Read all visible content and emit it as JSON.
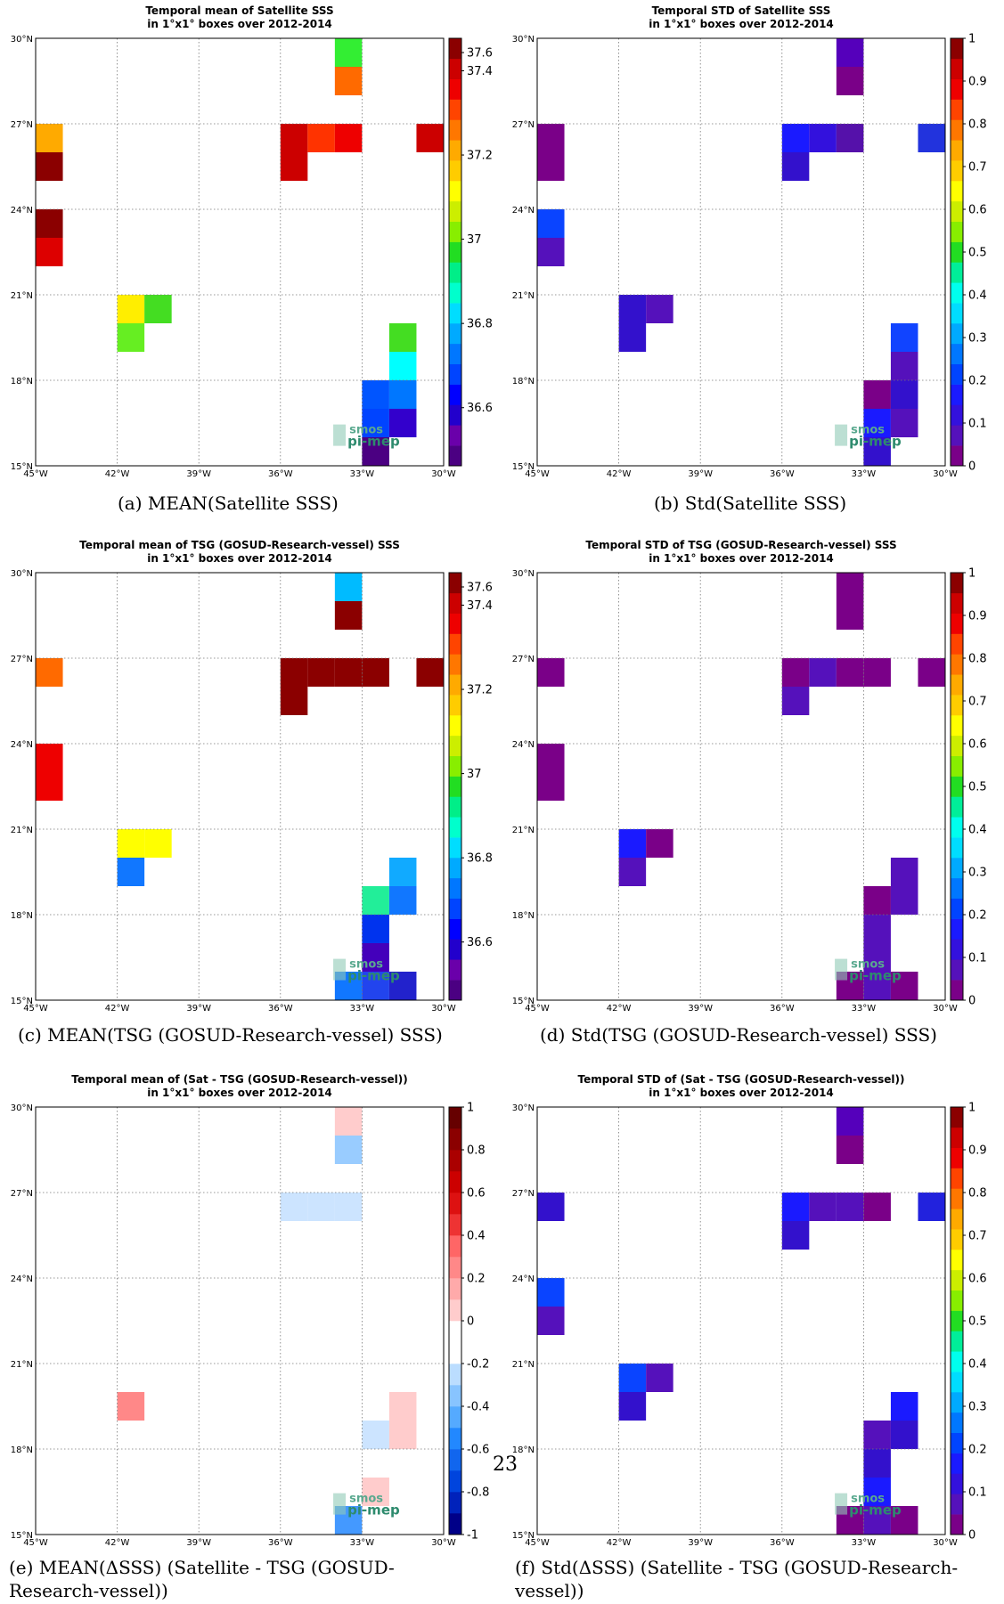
{
  "page_number": "23",
  "x_ticks": [
    "45°W",
    "42°W",
    "39°W",
    "36°W",
    "33°W",
    "30°W"
  ],
  "y_ticks": [
    "15°N",
    "18°N",
    "21°N",
    "24°N",
    "27°N",
    "30°N"
  ],
  "watermark": {
    "line1": "smos",
    "line2": "pi-mep"
  },
  "panels": [
    {
      "title1": "Temporal mean of Satellite SSS",
      "title2": "in 1°x1° boxes over 2012-2014",
      "caption": "(a) MEAN(Satellite SSS)",
      "caption2": "",
      "cbar": "sss",
      "cells": [
        [
          34,
          29,
          "#33ee33"
        ],
        [
          34,
          28,
          "#ff6a00"
        ],
        [
          45,
          26,
          "#ffaa00"
        ],
        [
          45,
          25,
          "#8b0000"
        ],
        [
          45,
          23,
          "#8b0000"
        ],
        [
          45,
          22,
          "#dd0000"
        ],
        [
          36,
          26,
          "#cc0000"
        ],
        [
          35,
          26,
          "#ff3300"
        ],
        [
          34,
          26,
          "#ee0000"
        ],
        [
          31,
          26,
          "#cc0000"
        ],
        [
          36,
          25,
          "#cc0000"
        ],
        [
          42,
          20,
          "#ffee00"
        ],
        [
          41,
          20,
          "#44dd22"
        ],
        [
          42,
          19,
          "#66ee22"
        ],
        [
          32,
          19,
          "#44dd22"
        ],
        [
          32,
          18,
          "#00ffff"
        ],
        [
          33,
          17,
          "#0055ff"
        ],
        [
          32,
          17,
          "#0077ff"
        ],
        [
          33,
          16,
          "#0044ff"
        ],
        [
          32,
          16,
          "#3300cc"
        ],
        [
          33,
          15,
          "#4b0082"
        ]
      ]
    },
    {
      "title1": "Temporal STD of Satellite SSS",
      "title2": "in 1°x1° boxes over 2012-2014",
      "caption": "(b) Std(Satellite SSS)",
      "caption2": "",
      "cbar": "std",
      "cells": [
        [
          34,
          29,
          "#5500bb"
        ],
        [
          34,
          28,
          "#7a0088"
        ],
        [
          45,
          26,
          "#7a0088"
        ],
        [
          45,
          25,
          "#7a0088"
        ],
        [
          36,
          26,
          "#1a1aff"
        ],
        [
          35,
          26,
          "#3311dd"
        ],
        [
          34,
          26,
          "#5511aa"
        ],
        [
          31,
          26,
          "#2233dd"
        ],
        [
          36,
          25,
          "#3311cc"
        ],
        [
          45,
          23,
          "#0a44ff"
        ],
        [
          45,
          22,
          "#5511bb"
        ],
        [
          42,
          20,
          "#3311cc"
        ],
        [
          41,
          20,
          "#5511bb"
        ],
        [
          42,
          19,
          "#3311cc"
        ],
        [
          32,
          19,
          "#1144ff"
        ],
        [
          32,
          18,
          "#5511bb"
        ],
        [
          33,
          17,
          "#7a0088"
        ],
        [
          32,
          17,
          "#3311cc"
        ],
        [
          33,
          16,
          "#1a1aff"
        ],
        [
          32,
          16,
          "#5511bb"
        ],
        [
          33,
          15,
          "#3311cc"
        ]
      ]
    },
    {
      "title1": "Temporal mean of TSG (GOSUD-Research-vessel) SSS",
      "title2": "in 1°x1° boxes over 2012-2014",
      "caption": "(c) MEAN(TSG (GOSUD-Research-vessel) SSS)",
      "caption2": "",
      "cbar": "sss",
      "cells": [
        [
          34,
          29,
          "#00bbff"
        ],
        [
          34,
          28,
          "#8b0000"
        ],
        [
          45,
          26,
          "#ff6a00"
        ],
        [
          36,
          26,
          "#8b0000"
        ],
        [
          35,
          26,
          "#8b0000"
        ],
        [
          34,
          26,
          "#8b0000"
        ],
        [
          33,
          26,
          "#8b0000"
        ],
        [
          31,
          26,
          "#8b0000"
        ],
        [
          36,
          25,
          "#8b0000"
        ],
        [
          45,
          23,
          "#ee0000"
        ],
        [
          45,
          22,
          "#ee0000"
        ],
        [
          42,
          20,
          "#ffff00"
        ],
        [
          41,
          20,
          "#ffff00"
        ],
        [
          42,
          19,
          "#1177ff"
        ],
        [
          32,
          19,
          "#11aaff"
        ],
        [
          33,
          18,
          "#22ee99"
        ],
        [
          32,
          18,
          "#1177ff"
        ],
        [
          33,
          17,
          "#0033ee"
        ],
        [
          33,
          16,
          "#4400bb"
        ],
        [
          34,
          15,
          "#1177ff"
        ],
        [
          33,
          15,
          "#2244ee"
        ],
        [
          32,
          15,
          "#2222cc"
        ]
      ]
    },
    {
      "title1": "Temporal STD of TSG (GOSUD-Research-vessel) SSS",
      "title2": "in 1°x1° boxes over 2012-2014",
      "caption": "(d) Std(TSG (GOSUD-Research-vessel) SSS)",
      "caption2": "",
      "cbar": "std",
      "cells": [
        [
          34,
          29,
          "#7a0088"
        ],
        [
          34,
          28,
          "#7a0088"
        ],
        [
          45,
          26,
          "#7a0088"
        ],
        [
          36,
          26,
          "#7a0088"
        ],
        [
          35,
          26,
          "#5511bb"
        ],
        [
          34,
          26,
          "#7a0088"
        ],
        [
          33,
          26,
          "#7a0088"
        ],
        [
          31,
          26,
          "#7a0088"
        ],
        [
          36,
          25,
          "#5511bb"
        ],
        [
          45,
          23,
          "#7a0088"
        ],
        [
          45,
          22,
          "#7a0088"
        ],
        [
          42,
          20,
          "#1a1aff"
        ],
        [
          41,
          20,
          "#7a0088"
        ],
        [
          42,
          19,
          "#5511bb"
        ],
        [
          32,
          19,
          "#5511bb"
        ],
        [
          33,
          18,
          "#7a0088"
        ],
        [
          32,
          18,
          "#5511bb"
        ],
        [
          33,
          17,
          "#5511bb"
        ],
        [
          33,
          16,
          "#5511bb"
        ],
        [
          34,
          15,
          "#7a0088"
        ],
        [
          33,
          15,
          "#5511bb"
        ],
        [
          32,
          15,
          "#7a0088"
        ]
      ]
    },
    {
      "title1": "Temporal mean of (Sat - TSG (GOSUD-Research-vessel))",
      "title2": "in 1°x1° boxes over 2012-2014",
      "caption": "(e) MEAN(ΔSSS) (Satellite - TSG (GOSUD-",
      "caption2": "Research-vessel))",
      "cbar": "diff",
      "cells": [
        [
          34,
          29,
          "#ffcccc"
        ],
        [
          34,
          28,
          "#99ccff"
        ],
        [
          36,
          26,
          "#cce4ff"
        ],
        [
          35,
          26,
          "#cce4ff"
        ],
        [
          34,
          26,
          "#cce4ff"
        ],
        [
          42,
          19,
          "#ff8888"
        ],
        [
          32,
          19,
          "#ffcccc"
        ],
        [
          33,
          18,
          "#cce4ff"
        ],
        [
          32,
          18,
          "#ffcccc"
        ],
        [
          33,
          16,
          "#ffcccc"
        ],
        [
          34,
          15,
          "#4499ff"
        ]
      ]
    },
    {
      "title1": "Temporal STD of (Sat - TSG (GOSUD-Research-vessel))",
      "title2": "in 1°x1° boxes over 2012-2014",
      "caption": "(f) Std(ΔSSS) (Satellite - TSG (GOSUD-Research-",
      "caption2": "vessel))",
      "cbar": "std",
      "cells": [
        [
          34,
          29,
          "#5500bb"
        ],
        [
          34,
          28,
          "#7a0088"
        ],
        [
          45,
          26,
          "#3311cc"
        ],
        [
          36,
          26,
          "#1a1aff"
        ],
        [
          35,
          26,
          "#5511bb"
        ],
        [
          34,
          26,
          "#5511bb"
        ],
        [
          33,
          26,
          "#7a0088"
        ],
        [
          31,
          26,
          "#2222dd"
        ],
        [
          36,
          25,
          "#3311cc"
        ],
        [
          45,
          23,
          "#0a44ff"
        ],
        [
          45,
          22,
          "#5511bb"
        ],
        [
          42,
          20,
          "#0a44ff"
        ],
        [
          41,
          20,
          "#5511bb"
        ],
        [
          42,
          19,
          "#3311cc"
        ],
        [
          32,
          19,
          "#1a1aff"
        ],
        [
          33,
          18,
          "#5511bb"
        ],
        [
          32,
          18,
          "#3311cc"
        ],
        [
          33,
          17,
          "#3311cc"
        ],
        [
          33,
          16,
          "#1a1aff"
        ],
        [
          34,
          15,
          "#7a0088"
        ],
        [
          33,
          15,
          "#5511bb"
        ],
        [
          32,
          15,
          "#7a0088"
        ]
      ]
    }
  ],
  "colorbars": {
    "sss": {
      "colors": [
        "#4b0082",
        "#6a00aa",
        "#2200cc",
        "#0000ff",
        "#0044ff",
        "#0077ff",
        "#00aaff",
        "#00ddff",
        "#00ffcc",
        "#00ee88",
        "#22dd22",
        "#88ee00",
        "#ccee00",
        "#ffff00",
        "#ffcc00",
        "#ffaa00",
        "#ff7700",
        "#ff4400",
        "#ee0000",
        "#cc0000",
        "#8b0000"
      ],
      "labels": [
        "36.6",
        "36.8",
        "37",
        "37.2",
        "37.4",
        "37.6"
      ],
      "label_fracs": [
        0.136,
        0.333,
        0.53,
        0.727,
        0.924,
        1.0
      ]
    },
    "std": {
      "colors": [
        "#7a0088",
        "#5511bb",
        "#3311dd",
        "#1a1aff",
        "#0044ff",
        "#0077ff",
        "#00aaff",
        "#00ddff",
        "#00ffee",
        "#00ee99",
        "#22dd22",
        "#88ee00",
        "#ccee00",
        "#ffff00",
        "#ffcc00",
        "#ffaa00",
        "#ff7700",
        "#ff4400",
        "#ee0000",
        "#cc0000",
        "#8b0000"
      ],
      "labels": [
        "0",
        "0.1",
        "0.2",
        "0.3",
        "0.4",
        "0.5",
        "0.6",
        "0.7",
        "0.8",
        "0.9",
        "1"
      ]
    },
    "diff": {
      "colors": [
        "#000088",
        "#0022bb",
        "#0044dd",
        "#1166ee",
        "#2288ff",
        "#55aaff",
        "#88c4ff",
        "#bbddff",
        "#ffffff",
        "#ffffff",
        "#ffcccc",
        "#ffaaaa",
        "#ff8888",
        "#ff6666",
        "#ee3333",
        "#dd1111",
        "#cc0000",
        "#aa0000",
        "#8b0000",
        "#660000"
      ],
      "labels": [
        "-1",
        "-0.8",
        "-0.6",
        "-0.4",
        "-0.2",
        "0",
        "0.2",
        "0.4",
        "0.6",
        "0.8",
        "1"
      ]
    }
  }
}
